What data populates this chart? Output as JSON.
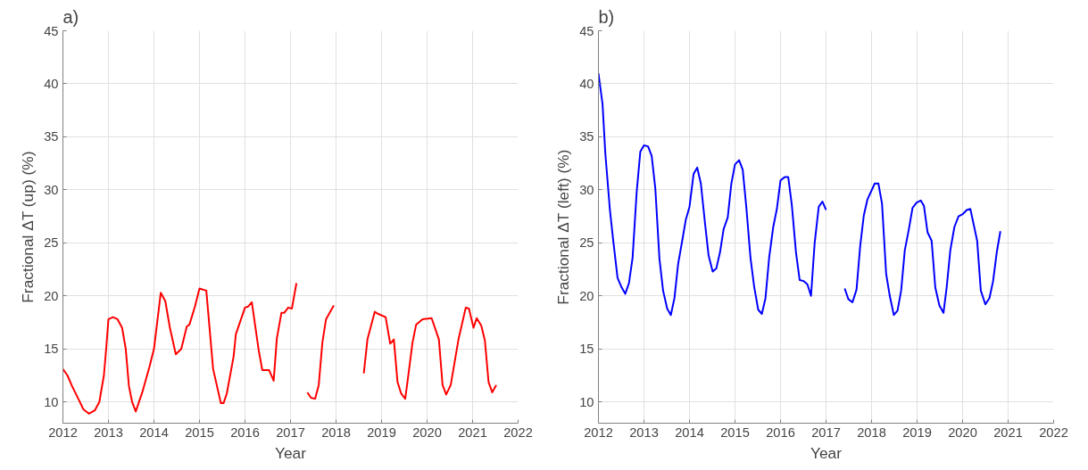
{
  "chart_data": [
    {
      "type": "line",
      "title": "a)",
      "xlabel": "Year",
      "ylabel": "Fractional ΔT (up) (%)",
      "xlim": [
        2012,
        2022
      ],
      "ylim": [
        8,
        45
      ],
      "xticks": [
        2012,
        2013,
        2014,
        2015,
        2016,
        2017,
        2018,
        2019,
        2020,
        2021,
        2022
      ],
      "yticks": [
        10,
        15,
        20,
        25,
        30,
        35,
        40,
        45
      ],
      "grid": true,
      "line_style": "solid",
      "marker": "none",
      "x": [
        2012.0,
        2012.1,
        2012.2,
        2012.35,
        2012.45,
        2012.57,
        2012.7,
        2012.8,
        2012.9,
        2012.95,
        2013.0,
        2013.1,
        2013.2,
        2013.3,
        2013.38,
        2013.45,
        2013.52,
        2013.6,
        2013.75,
        2013.9,
        2014.0,
        2014.15,
        2014.25,
        2014.35,
        2014.48,
        2014.6,
        2014.72,
        2014.78,
        2014.9,
        2015.0,
        2015.15,
        2015.3,
        2015.47,
        2015.53,
        2015.6,
        2015.75,
        2015.8,
        2016.0,
        2016.07,
        2016.15,
        2016.3,
        2016.38,
        2016.53,
        2016.63,
        2016.7,
        2016.8,
        2016.86,
        2016.95,
        2017.03,
        2017.13,
        2017.25,
        2017.37,
        2017.45,
        2017.54,
        2017.62,
        2017.7,
        2017.78,
        2017.95,
        2018.3,
        2018.61,
        2018.69,
        2018.85,
        2018.93,
        2019.09,
        2019.19,
        2019.27,
        2019.35,
        2019.43,
        2019.52,
        2019.6,
        2019.68,
        2019.76,
        2019.9,
        2020.1,
        2020.26,
        2020.34,
        2020.42,
        2020.52,
        2020.69,
        2020.85,
        2020.92,
        2021.02,
        2021.09,
        2021.19,
        2021.27,
        2021.35,
        2021.43,
        2021.52
      ],
      "series": [
        {
          "color": "#ff0000",
          "values": [
            13.1,
            12.5,
            11.5,
            10.2,
            9.3,
            8.9,
            9.2,
            10.0,
            12.5,
            15.0,
            17.8,
            18.0,
            17.8,
            17.0,
            15.0,
            11.5,
            10.0,
            9.1,
            11.0,
            13.3,
            15.0,
            20.3,
            19.5,
            17.0,
            14.5,
            15.0,
            17.1,
            17.3,
            19.0,
            20.7,
            20.5,
            13.1,
            9.9,
            9.9,
            10.8,
            14.3,
            16.4,
            18.9,
            19.0,
            19.4,
            14.9,
            13.0,
            13.0,
            12.0,
            16.0,
            18.4,
            18.4,
            18.9,
            18.8,
            21.2,
            null,
            10.9,
            10.4,
            10.3,
            11.6,
            15.6,
            17.8,
            19.1,
            null,
            12.7,
            15.9,
            18.5,
            18.3,
            18.0,
            15.5,
            15.9,
            11.9,
            10.8,
            10.3,
            12.9,
            15.6,
            17.3,
            17.8,
            17.9,
            15.9,
            11.6,
            10.7,
            11.6,
            15.9,
            18.9,
            18.8,
            17.0,
            17.9,
            17.2,
            15.8,
            11.9,
            10.9,
            11.6
          ]
        }
      ]
    },
    {
      "type": "line",
      "title": "b)",
      "xlabel": "Year",
      "ylabel": "Fractional ΔT (left) (%)",
      "xlim": [
        2012,
        2022
      ],
      "ylim": [
        8,
        45
      ],
      "xticks": [
        2012,
        2013,
        2014,
        2015,
        2016,
        2017,
        2018,
        2019,
        2020,
        2021,
        2022
      ],
      "yticks": [
        10,
        15,
        20,
        25,
        30,
        35,
        40,
        45
      ],
      "grid": true,
      "line_style": "solid",
      "marker": "none",
      "x": [
        2012.0,
        2012.09,
        2012.15,
        2012.25,
        2012.32,
        2012.42,
        2012.51,
        2012.59,
        2012.67,
        2012.75,
        2012.84,
        2012.92,
        2013.0,
        2013.09,
        2013.17,
        2013.25,
        2013.34,
        2013.42,
        2013.51,
        2013.59,
        2013.67,
        2013.75,
        2013.84,
        2013.92,
        2014.0,
        2014.09,
        2014.17,
        2014.25,
        2014.34,
        2014.42,
        2014.51,
        2014.59,
        2014.67,
        2014.75,
        2014.84,
        2014.92,
        2015.0,
        2015.09,
        2015.17,
        2015.25,
        2015.34,
        2015.42,
        2015.51,
        2015.59,
        2015.67,
        2015.75,
        2015.84,
        2015.92,
        2016.0,
        2016.09,
        2016.17,
        2016.25,
        2016.34,
        2016.42,
        2016.51,
        2016.59,
        2016.67,
        2016.75,
        2016.84,
        2016.92,
        2017.0,
        2017.2,
        2017.41,
        2017.49,
        2017.58,
        2017.67,
        2017.75,
        2017.83,
        2017.91,
        2018.07,
        2018.15,
        2018.23,
        2018.32,
        2018.4,
        2018.49,
        2018.57,
        2018.65,
        2018.73,
        2018.82,
        2018.9,
        2018.99,
        2019.08,
        2019.15,
        2019.23,
        2019.32,
        2019.4,
        2019.49,
        2019.58,
        2019.65,
        2019.73,
        2019.82,
        2019.91,
        2020.0,
        2020.09,
        2020.17,
        2020.32,
        2020.4,
        2020.5,
        2020.59,
        2020.67,
        2020.75,
        2020.83
      ],
      "series": [
        {
          "color": "#0000ff",
          "values": [
            41.0,
            38.1,
            33.5,
            28.2,
            25.4,
            21.7,
            20.8,
            20.2,
            21.2,
            23.6,
            29.8,
            33.6,
            34.2,
            34.1,
            33.2,
            30.1,
            23.5,
            20.5,
            18.8,
            18.2,
            19.8,
            23.0,
            25.2,
            27.2,
            28.4,
            31.5,
            32.1,
            30.6,
            26.9,
            23.8,
            22.3,
            22.6,
            24.1,
            26.3,
            27.4,
            30.6,
            32.4,
            32.8,
            31.9,
            28.3,
            23.6,
            20.9,
            18.7,
            18.3,
            19.8,
            23.6,
            26.5,
            28.2,
            30.9,
            31.2,
            31.2,
            28.5,
            24.1,
            21.5,
            21.4,
            21.1,
            20.0,
            25.0,
            28.4,
            28.9,
            28.1,
            null,
            20.7,
            19.7,
            19.4,
            20.6,
            24.7,
            27.6,
            29.1,
            30.6,
            30.6,
            28.7,
            22.1,
            20.0,
            18.2,
            18.6,
            20.5,
            24.3,
            26.3,
            28.3,
            28.8,
            29.0,
            28.5,
            26.0,
            25.2,
            20.8,
            19.1,
            18.4,
            20.8,
            24.3,
            26.5,
            27.5,
            27.7,
            28.1,
            28.2,
            25.2,
            20.5,
            19.2,
            19.8,
            21.4,
            24.1,
            26.1
          ]
        }
      ]
    }
  ]
}
